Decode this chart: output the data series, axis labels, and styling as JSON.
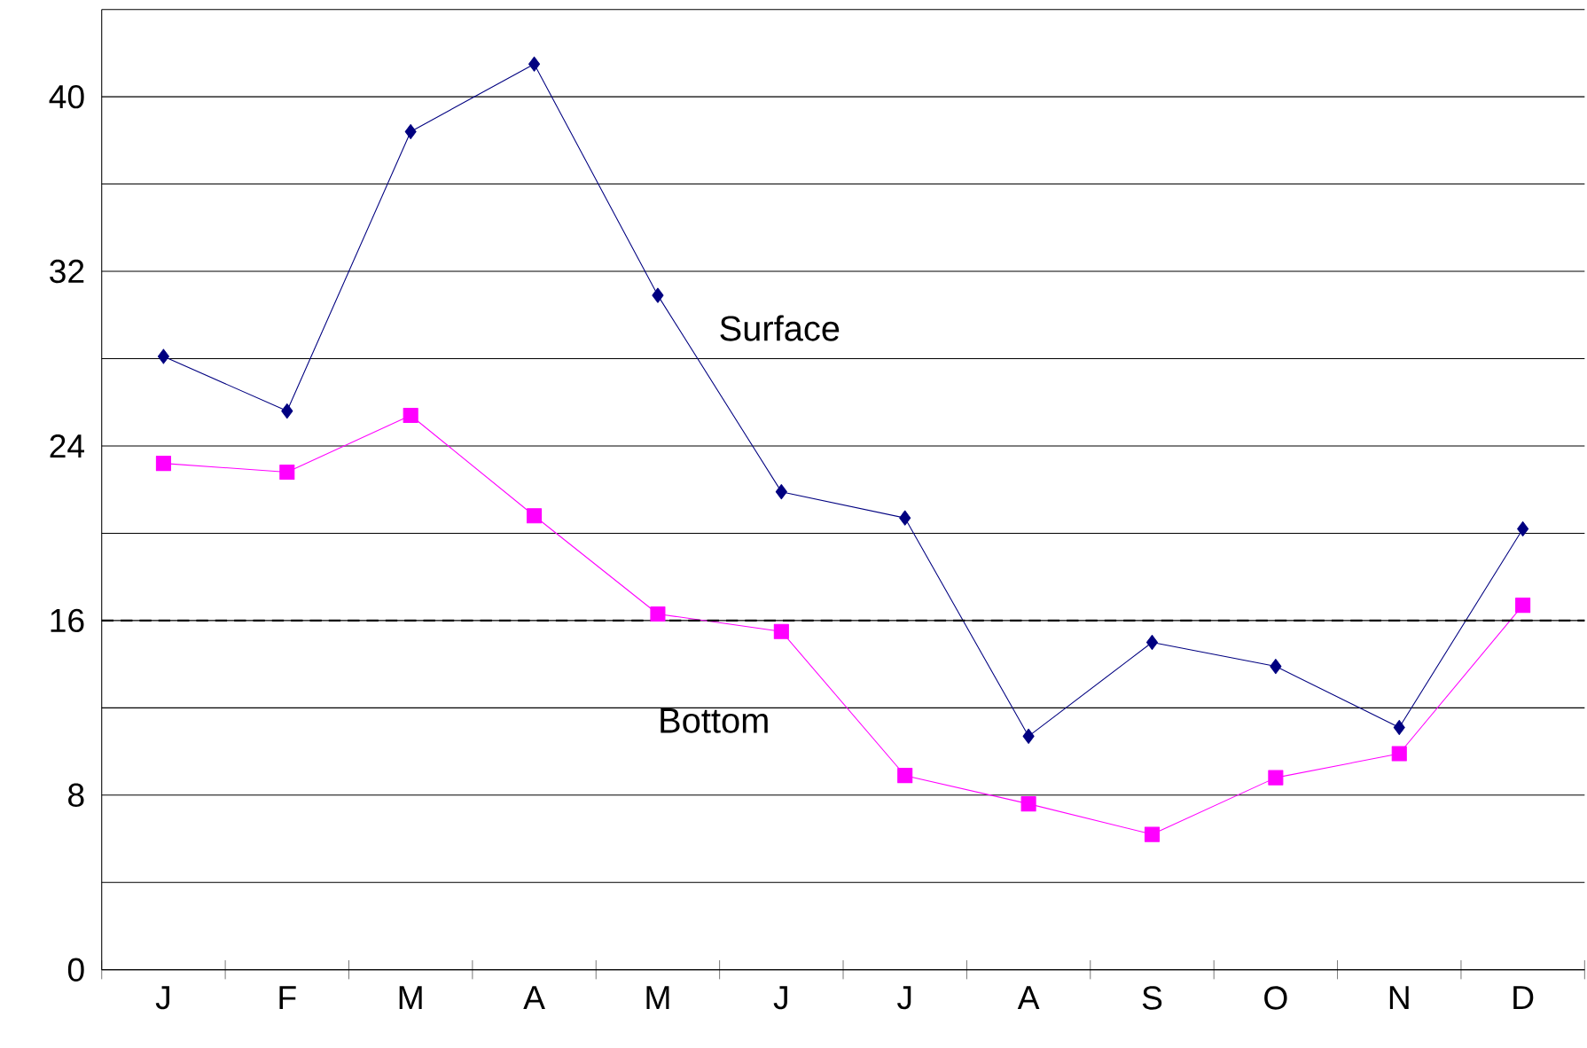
{
  "chart_data": {
    "type": "line",
    "categories": [
      "J",
      "F",
      "M",
      "A",
      "M",
      "J",
      "J",
      "A",
      "S",
      "O",
      "N",
      "D"
    ],
    "series": [
      {
        "name": "Surface",
        "color": "#000080",
        "marker": "diamond",
        "values": [
          28.1,
          25.6,
          38.4,
          41.5,
          30.9,
          21.9,
          20.7,
          10.7,
          15.0,
          13.9,
          11.1,
          20.2
        ]
      },
      {
        "name": "Bottom",
        "color": "#ff00ff",
        "marker": "square",
        "values": [
          23.2,
          22.8,
          25.4,
          20.8,
          16.3,
          15.5,
          8.9,
          7.6,
          6.2,
          8.8,
          9.9,
          16.7
        ]
      }
    ],
    "ylim": [
      0,
      44
    ],
    "yticks": [
      0,
      {
        "value": 4,
        "label": null
      },
      8,
      {
        "value": 12,
        "label": null
      },
      16,
      {
        "value": 20,
        "label": null
      },
      24,
      {
        "value": 28,
        "label": null
      },
      32,
      {
        "value": 36,
        "label": null
      },
      40,
      {
        "value": 44,
        "label": null
      }
    ],
    "grid": "y",
    "legend": false,
    "line_style": "solid",
    "ref_lines": [
      {
        "axis": "y",
        "value": 16,
        "color": "#000000",
        "line_style": "dashed"
      }
    ]
  }
}
